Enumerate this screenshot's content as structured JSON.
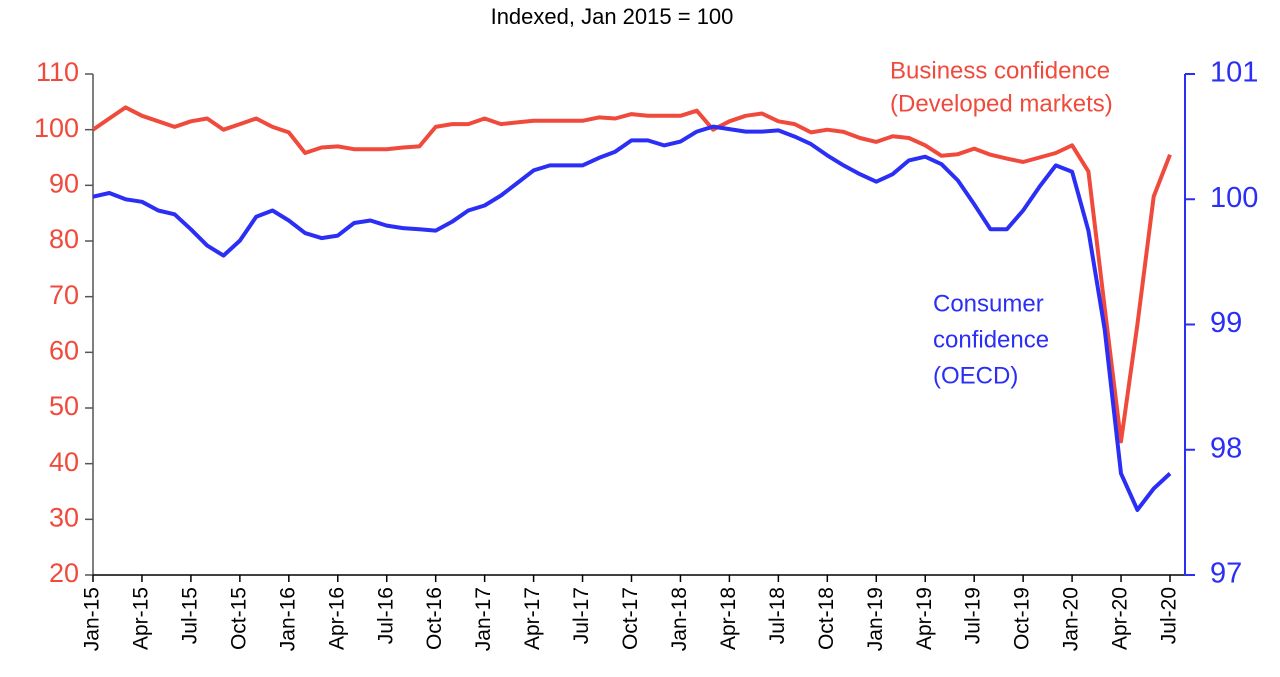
{
  "chart_data": {
    "type": "line",
    "subtitle": "Indexed, Jan 2015 = 100",
    "categories": [
      "Jan-15",
      null,
      null,
      "Apr-15",
      null,
      null,
      "Jul-15",
      null,
      null,
      "Oct-15",
      null,
      null,
      "Jan-16",
      null,
      null,
      "Apr-16",
      null,
      null,
      "Jul-16",
      null,
      null,
      "Oct-16",
      null,
      null,
      "Jan-17",
      null,
      null,
      "Apr-17",
      null,
      null,
      "Jul-17",
      null,
      null,
      "Oct-17",
      null,
      null,
      "Jan-18",
      null,
      null,
      "Apr-18",
      null,
      null,
      "Jul-18",
      null,
      null,
      "Oct-18",
      null,
      null,
      "Jan-19",
      null,
      null,
      "Apr-19",
      null,
      null,
      "Jul-19",
      null,
      null,
      "Oct-19",
      null,
      null,
      "Jan-20",
      null,
      null,
      "Apr-20",
      null,
      null,
      "Jul-20"
    ],
    "series": [
      {
        "name": [
          "Business confidence",
          "(Developed markets)"
        ],
        "color": "#f04a3c",
        "axis": "y",
        "values": [
          100,
          102,
          104,
          102.5,
          101.5,
          100.5,
          101.5,
          102,
          100,
          101,
          102,
          100.5,
          99.5,
          95.8,
          96.8,
          97,
          96.5,
          96.5,
          96.5,
          96.8,
          97,
          100.5,
          101,
          101,
          102,
          101,
          101.3,
          101.6,
          101.6,
          101.6,
          101.6,
          102.2,
          102,
          102.8,
          102.5,
          102.5,
          102.5,
          103.4,
          100,
          101.5,
          102.5,
          102.9,
          101.5,
          101,
          99.5,
          100,
          99.6,
          98.5,
          97.8,
          98.8,
          98.5,
          97.2,
          95.3,
          95.6,
          96.6,
          95.5,
          94.8,
          94.2,
          95,
          95.8,
          97.2,
          92.5,
          68,
          44,
          65,
          88,
          95.5
        ]
      },
      {
        "name": [
          "Consumer",
          "confidence",
          "(OECD)"
        ],
        "color": "#2b2ef5",
        "axis": "y2",
        "values": [
          100.02,
          100.05,
          100,
          99.98,
          99.91,
          99.88,
          99.76,
          99.63,
          99.55,
          99.67,
          99.86,
          99.91,
          99.83,
          99.73,
          99.69,
          99.71,
          99.81,
          99.83,
          99.79,
          99.77,
          99.76,
          99.75,
          99.82,
          99.91,
          99.95,
          100.03,
          100.13,
          100.23,
          100.27,
          100.27,
          100.27,
          100.33,
          100.38,
          100.47,
          100.47,
          100.43,
          100.46,
          100.54,
          100.58,
          100.56,
          100.54,
          100.54,
          100.55,
          100.5,
          100.44,
          100.35,
          100.27,
          100.2,
          100.14,
          100.2,
          100.31,
          100.34,
          100.28,
          100.15,
          99.96,
          99.76,
          99.76,
          99.91,
          100.1,
          100.27,
          100.22,
          99.75,
          98.96,
          97.81,
          97.52,
          97.69,
          97.81
        ]
      }
    ],
    "ylim": [
      20,
      110
    ],
    "yticks": [
      20,
      30,
      40,
      50,
      60,
      70,
      80,
      90,
      100,
      110
    ],
    "y2lim": [
      97,
      101
    ],
    "y2ticks": [
      97,
      98,
      99,
      100,
      101
    ]
  }
}
